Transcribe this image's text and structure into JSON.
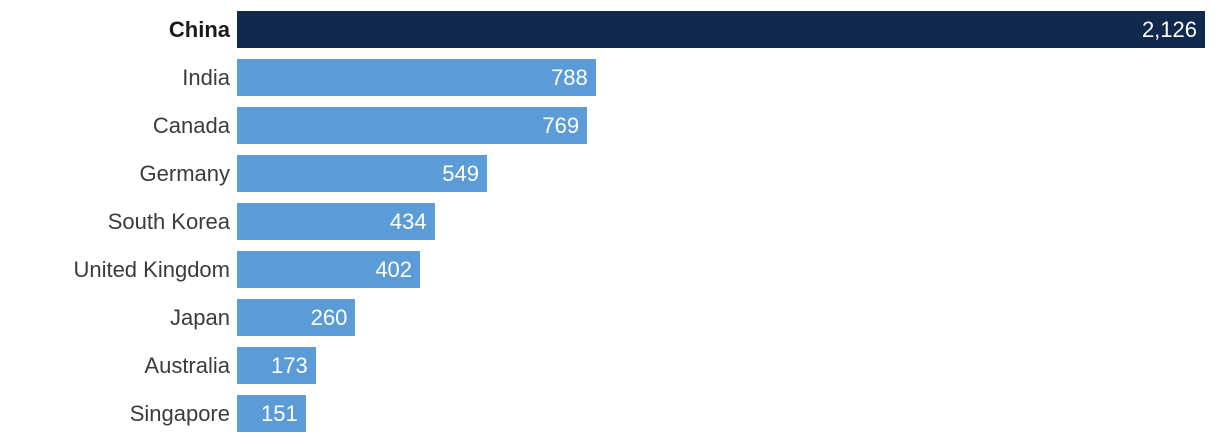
{
  "chart_data": {
    "type": "bar",
    "orientation": "horizontal",
    "title": "",
    "xlabel": "",
    "ylabel": "",
    "grid": false,
    "legend": false,
    "xlim": [
      0,
      2126
    ],
    "categories": [
      "China",
      "India",
      "Canada",
      "Germany",
      "South Korea",
      "United Kingdom",
      "Japan",
      "Australia",
      "Singapore"
    ],
    "values": [
      2126,
      788,
      769,
      549,
      434,
      402,
      260,
      173,
      151
    ],
    "value_labels": [
      "2,126",
      "788",
      "769",
      "549",
      "434",
      "402",
      "260",
      "173",
      "151"
    ],
    "highlighted_index": 0,
    "highlighted_category": "China",
    "bar_color": "#5b9bd8",
    "highlight_color": "#12294e",
    "value_label_color": "#ffffff",
    "category_label_color": "#3b3b3b",
    "highlight_label_color": "#1a1a1a"
  }
}
